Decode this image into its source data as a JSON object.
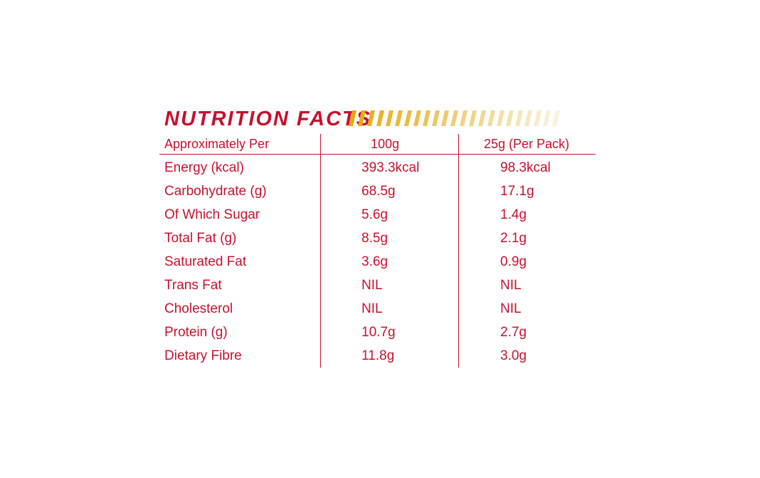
{
  "title": "NUTRITION FACTS",
  "colors": {
    "text": "#c8102e",
    "stripe_start": "#e5a812",
    "stripe_end": "#f9f3dd"
  },
  "header": {
    "label": "Approximately Per",
    "col_100g": "100g",
    "col_pack": "25g (Per Pack)"
  },
  "rows": [
    {
      "label": "Energy (kcal)",
      "per_100g": "393.3kcal",
      "per_pack": "98.3kcal"
    },
    {
      "label": "Carbohydrate (g)",
      "per_100g": "68.5g",
      "per_pack": "17.1g"
    },
    {
      "label": "Of Which Sugar",
      "per_100g": "5.6g",
      "per_pack": "1.4g"
    },
    {
      "label": "Total Fat (g)",
      "per_100g": "8.5g",
      "per_pack": "2.1g"
    },
    {
      "label": "Saturated Fat",
      "per_100g": "3.6g",
      "per_pack": "0.9g"
    },
    {
      "label": "Trans Fat",
      "per_100g": "NIL",
      "per_pack": "NIL"
    },
    {
      "label": "Cholesterol",
      "per_100g": "NIL",
      "per_pack": "NIL"
    },
    {
      "label": "Protein (g)",
      "per_100g": "10.7g",
      "per_pack": "2.7g"
    },
    {
      "label": "Dietary Fibre",
      "per_100g": "11.8g",
      "per_pack": "3.0g"
    }
  ]
}
